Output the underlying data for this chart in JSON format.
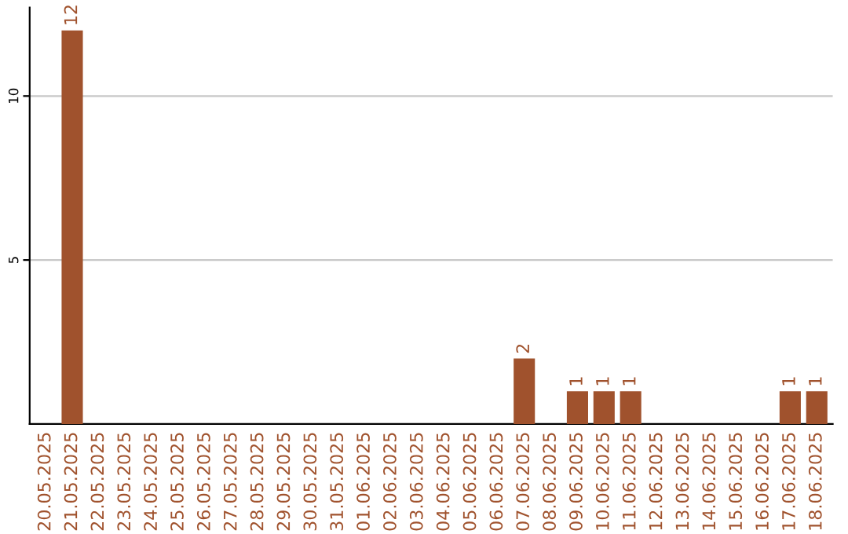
{
  "chart_data": {
    "type": "bar",
    "categories": [
      "20.05.2025",
      "21.05.2025",
      "22.05.2025",
      "23.05.2025",
      "24.05.2025",
      "25.05.2025",
      "26.05.2025",
      "27.05.2025",
      "28.05.2025",
      "29.05.2025",
      "30.05.2025",
      "31.05.2025",
      "01.06.2025",
      "02.06.2025",
      "03.06.2025",
      "04.06.2025",
      "05.06.2025",
      "06.06.2025",
      "07.06.2025",
      "08.06.2025",
      "09.06.2025",
      "10.06.2025",
      "11.06.2025",
      "12.06.2025",
      "13.06.2025",
      "14.06.2025",
      "15.06.2025",
      "16.06.2025",
      "17.06.2025",
      "18.06.2025"
    ],
    "values": [
      0,
      12,
      0,
      0,
      0,
      0,
      0,
      0,
      0,
      0,
      0,
      0,
      0,
      0,
      0,
      0,
      0,
      0,
      2,
      0,
      1,
      1,
      1,
      0,
      0,
      0,
      0,
      0,
      1,
      1
    ],
    "value_labels": [
      null,
      "12",
      null,
      null,
      null,
      null,
      null,
      null,
      null,
      null,
      null,
      null,
      null,
      null,
      null,
      null,
      null,
      null,
      "2",
      null,
      "1",
      "1",
      "1",
      null,
      null,
      null,
      null,
      null,
      "1",
      "1"
    ],
    "color": "#a0522d",
    "ylim": [
      0,
      12.7
    ],
    "yticks": [
      5,
      10
    ],
    "grid": "y"
  }
}
